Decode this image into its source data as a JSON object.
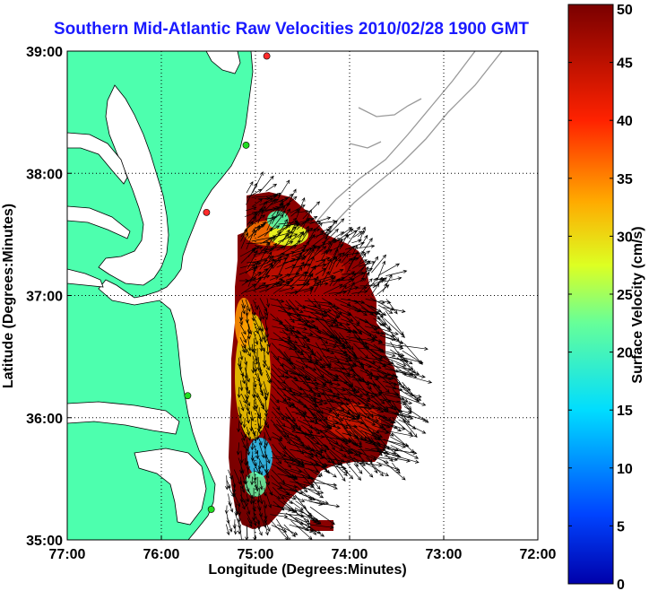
{
  "chart_data": {
    "type": "heatmap",
    "title": "Southern Mid-Atlantic Raw Velocities 2010/02/28 1900 GMT",
    "xlabel": "Longitude (Degrees:Minutes)",
    "ylabel": "Latitude (Degrees:Minutes)",
    "colorbar_label": "Surface Velocity (cm/s)",
    "x_ticks": [
      "77:00",
      "76:00",
      "75:00",
      "74:00",
      "73:00",
      "72:00"
    ],
    "x_tick_values": [
      -77,
      -76,
      -75,
      -74,
      -73,
      -72
    ],
    "y_ticks": [
      "39:00",
      "38:00",
      "37:00",
      "36:00",
      "35:00"
    ],
    "y_tick_values": [
      39,
      38,
      37,
      36,
      35
    ],
    "xlim": [
      -77,
      -72
    ],
    "ylim": [
      35,
      39
    ],
    "colorbar_ticks": [
      0,
      5,
      10,
      15,
      20,
      25,
      30,
      35,
      40,
      45,
      50
    ],
    "colorbar_range": [
      0,
      50
    ],
    "colormap": "jet",
    "grid": true,
    "land_color": "#4dffae",
    "bathymetry_color": "#999999",
    "arrow_color": "#000000",
    "station_markers": [
      {
        "lon": -74.88,
        "lat": 38.96,
        "color": "#ff2a2a"
      },
      {
        "lon": -75.1,
        "lat": 38.23,
        "color": "#22dd22"
      },
      {
        "lon": -75.52,
        "lat": 37.68,
        "color": "#ff2a2a"
      },
      {
        "lon": -75.72,
        "lat": 36.18,
        "color": "#22dd22"
      },
      {
        "lon": -75.47,
        "lat": 35.25,
        "color": "#22dd22"
      }
    ]
  }
}
